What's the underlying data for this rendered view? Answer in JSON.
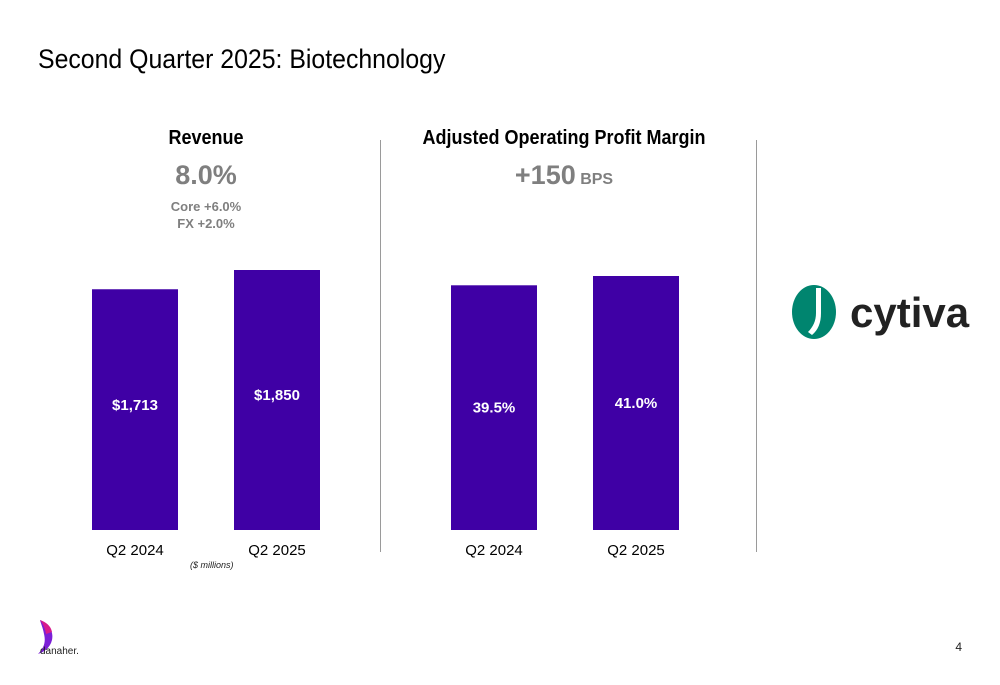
{
  "slide": {
    "title": "Second Quarter 2025: Biotechnology",
    "page_number": "4",
    "units_note": "($ millions)"
  },
  "revenue": {
    "title": "Revenue",
    "headline": "8.0%",
    "core": "Core +6.0%",
    "fx": "FX +2.0%"
  },
  "margin": {
    "title": "Adjusted Operating Profit Margin",
    "headline_value": "+150",
    "headline_unit": "BPS"
  },
  "logos": {
    "cytiva": "cytiva",
    "danaher": "danaher."
  },
  "colors": {
    "bar": "#3f00a5",
    "headline_gray": "#7f7f7f",
    "cytiva_green": "#00856f"
  },
  "chart_data": [
    {
      "type": "bar",
      "title": "Revenue",
      "categories": [
        "Q2 2024",
        "Q2 2025"
      ],
      "values": [
        1713,
        1850
      ],
      "data_labels": [
        "$1,713",
        "$1,850"
      ],
      "ylabel": "($ millions)"
    },
    {
      "type": "bar",
      "title": "Adjusted Operating Profit Margin",
      "categories": [
        "Q2 2024",
        "Q2 2025"
      ],
      "values": [
        39.5,
        41.0
      ],
      "data_labels": [
        "39.5%",
        "41.0%"
      ]
    }
  ]
}
